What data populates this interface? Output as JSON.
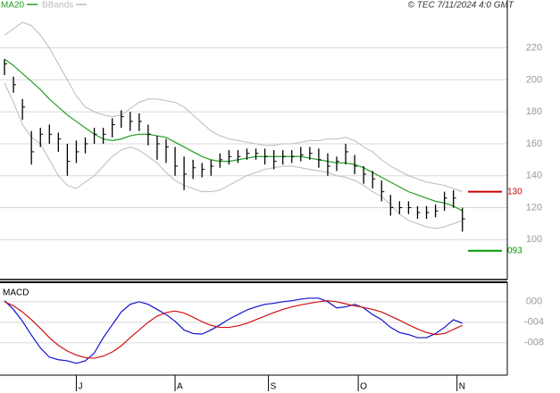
{
  "chart_data": [
    {
      "type": "ohlc",
      "annotation": "© TEC 7/11/2024 4:0 GMT",
      "x": [
        0,
        1,
        2,
        3,
        4,
        5,
        6,
        7,
        8,
        9,
        10,
        11,
        12,
        13,
        14,
        15,
        16,
        17,
        18,
        19,
        20,
        21,
        22,
        23,
        24,
        25,
        26,
        27,
        28,
        29,
        30,
        31,
        32,
        33,
        34,
        35,
        36,
        37,
        38,
        39,
        40,
        41,
        42,
        43,
        44,
        45,
        46,
        47,
        48,
        49,
        50,
        51
      ],
      "high": [
        213,
        202,
        188,
        168,
        170,
        172,
        167,
        160,
        162,
        164,
        170,
        170,
        176,
        181,
        180,
        179,
        172,
        165,
        163,
        158,
        152,
        150,
        148,
        150,
        154,
        156,
        156,
        157,
        157,
        157,
        156,
        156,
        156,
        158,
        158,
        157,
        154,
        152,
        160,
        153,
        146,
        143,
        137,
        128,
        124,
        124,
        121,
        121,
        122,
        130,
        131,
        120
      ],
      "low": [
        203,
        192,
        175,
        147,
        158,
        160,
        155,
        140,
        148,
        154,
        160,
        160,
        164,
        170,
        168,
        168,
        159,
        150,
        148,
        140,
        131,
        138,
        139,
        140,
        145,
        147,
        148,
        150,
        150,
        147,
        144,
        147,
        148,
        149,
        150,
        145,
        140,
        143,
        147,
        141,
        135,
        132,
        124,
        115,
        116,
        116,
        113,
        113,
        114,
        118,
        120,
        105
      ],
      "close": [
        210,
        197,
        183,
        155,
        166,
        166,
        163,
        149,
        155,
        160,
        166,
        166,
        172,
        177,
        174,
        174,
        166,
        160,
        158,
        146,
        141,
        145,
        144,
        146,
        150,
        152,
        152,
        154,
        154,
        152,
        149,
        152,
        152,
        153,
        154,
        150,
        146,
        149,
        155,
        146,
        141,
        138,
        130,
        120,
        120,
        120,
        117,
        117,
        118,
        126,
        126,
        113
      ],
      "bar_color": "#000000",
      "series": [
        {
          "name": "MA20",
          "color": "#22a022",
          "values": [
            213,
            209,
            204,
            199,
            194,
            188,
            183,
            178,
            174,
            170,
            166,
            163,
            162,
            163,
            165,
            166,
            166,
            165,
            164,
            161,
            158,
            155,
            152,
            150,
            149,
            149,
            150,
            151,
            152,
            152,
            152,
            152,
            152,
            152,
            151,
            150,
            149,
            148,
            148,
            147,
            145,
            142,
            139,
            136,
            133,
            130,
            128,
            126,
            124,
            123,
            121,
            118
          ]
        },
        {
          "name": "BBands",
          "color": "#bbbbbb",
          "upper": [
            228,
            232,
            236,
            234,
            228,
            220,
            210,
            200,
            190,
            183,
            180,
            178,
            177,
            178,
            182,
            186,
            188,
            188,
            187,
            186,
            183,
            178,
            173,
            168,
            165,
            163,
            162,
            161,
            160,
            159,
            159,
            160,
            160,
            161,
            162,
            162,
            163,
            163,
            164,
            162,
            158,
            155,
            150,
            146,
            143,
            140,
            138,
            136,
            135,
            134,
            132,
            130
          ],
          "lower": [
            198,
            186,
            172,
            164,
            160,
            150,
            140,
            134,
            132,
            136,
            140,
            146,
            152,
            156,
            158,
            156,
            152,
            148,
            142,
            137,
            134,
            132,
            130,
            130,
            131,
            134,
            137,
            140,
            142,
            144,
            145,
            146,
            146,
            145,
            144,
            143,
            142,
            140,
            139,
            137,
            134,
            130,
            127,
            122,
            116,
            112,
            110,
            108,
            107,
            108,
            110,
            112
          ]
        }
      ],
      "levels": [
        {
          "value": 130,
          "label": "130",
          "color": "#cc0000"
        },
        {
          "value": 93,
          "label": "093",
          "color": "#009900"
        }
      ],
      "xlim": [
        -0.5,
        56
      ],
      "ylim": [
        75,
        250
      ],
      "yticks": [
        100,
        120,
        140,
        160,
        180,
        200,
        220
      ],
      "grid": true
    },
    {
      "type": "line",
      "title": "MACD",
      "x": [
        0,
        1,
        2,
        3,
        4,
        5,
        6,
        7,
        8,
        9,
        10,
        11,
        12,
        13,
        14,
        15,
        16,
        17,
        18,
        19,
        20,
        21,
        22,
        23,
        24,
        25,
        26,
        27,
        28,
        29,
        30,
        31,
        32,
        33,
        34,
        35,
        36,
        37,
        38,
        39,
        40,
        41,
        42,
        43,
        44,
        45,
        46,
        47,
        48,
        49,
        50,
        51
      ],
      "series": [
        {
          "color": "#1010d0",
          "values": [
            0.2,
            -1.5,
            -3.8,
            -6.5,
            -9,
            -10.8,
            -11.3,
            -11.5,
            -12,
            -11.5,
            -10,
            -7,
            -4.5,
            -2,
            -0.5,
            0,
            -0.5,
            -1.5,
            -2.5,
            -3.8,
            -5.5,
            -6.2,
            -6.3,
            -5.5,
            -4.5,
            -3.4,
            -2.5,
            -1.6,
            -1,
            -0.5,
            -0.3,
            0,
            0.2,
            0.5,
            0.7,
            0.7,
            0,
            -1.2,
            -1,
            -0.5,
            -1.2,
            -2.5,
            -3.5,
            -5,
            -6,
            -6.4,
            -7,
            -7,
            -6.2,
            -5,
            -3.5,
            -4.2
          ]
        },
        {
          "color": "#d01010",
          "values": [
            0,
            -0.8,
            -2,
            -3.5,
            -5.2,
            -7,
            -8.5,
            -9.6,
            -10.4,
            -10.9,
            -11,
            -10.6,
            -9.8,
            -8.6,
            -7,
            -5.5,
            -4,
            -2.8,
            -2.1,
            -1.8,
            -2.2,
            -3,
            -3.9,
            -4.6,
            -5,
            -5,
            -4.7,
            -4.2,
            -3.5,
            -2.8,
            -2.1,
            -1.5,
            -1,
            -0.6,
            -0.3,
            0,
            0.2,
            0,
            -0.4,
            -0.8,
            -1.1,
            -1.5,
            -2,
            -2.8,
            -3.6,
            -4.5,
            -5.3,
            -6,
            -6.4,
            -6.2,
            -5.4,
            -4.6
          ]
        }
      ],
      "xlim": [
        -0.5,
        56
      ],
      "xticks": [
        {
          "value": 8,
          "label": "J"
        },
        {
          "value": 19,
          "label": "A"
        },
        {
          "value": 29.4,
          "label": "S"
        },
        {
          "value": 39.4,
          "label": "O"
        },
        {
          "value": 50.4,
          "label": "N"
        }
      ],
      "ylim": [
        -14.3,
        3.8
      ],
      "yticks": [
        {
          "value": 0,
          "label": "000"
        },
        {
          "value": -4,
          "label": "-004"
        },
        {
          "value": -8,
          "label": "-008"
        }
      ],
      "grid": true
    }
  ]
}
